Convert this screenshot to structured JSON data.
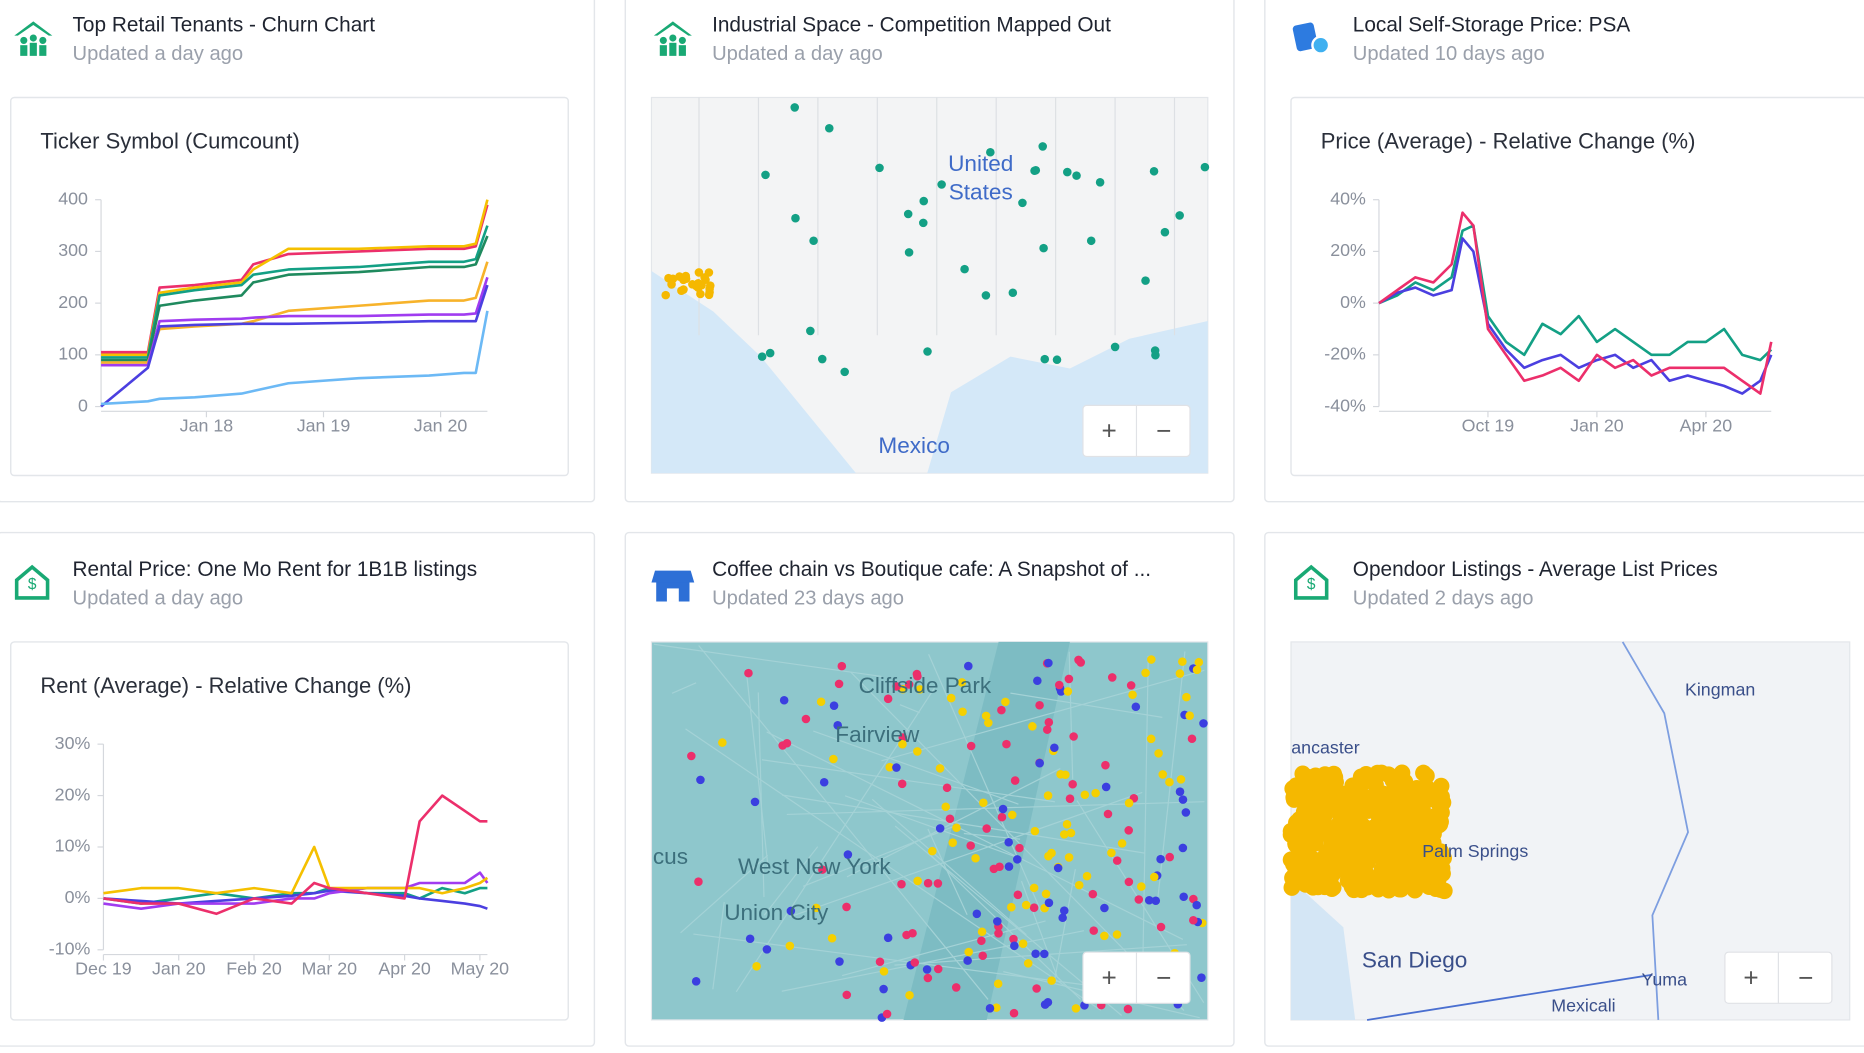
{
  "cards": [
    {
      "title": "Top Retail Tenants - Churn Chart",
      "updated": "Updated a day ago",
      "chart_data": {
        "type": "line",
        "title": "Ticker Symbol (Cumcount)",
        "x": [
          2017.1,
          2017.5,
          2017.6,
          2017.9,
          2018.3,
          2018.4,
          2018.7,
          2019.3,
          2019.9,
          2020.2,
          2020.3,
          2020.4
        ],
        "xlim": [
          2017.1,
          2020.4
        ],
        "xticks": [
          {
            "value": 2018,
            "label": "Jan 18"
          },
          {
            "value": 2019,
            "label": "Jan 19"
          },
          {
            "value": 2020,
            "label": "Jan 20"
          }
        ],
        "ylim": [
          0,
          400
        ],
        "yticks": [
          0,
          100,
          200,
          300,
          400
        ],
        "series": [
          {
            "color": "#ec2f6b",
            "values": [
              105,
              105,
              230,
              235,
              245,
              275,
              295,
              300,
              305,
              305,
              310,
              390
            ]
          },
          {
            "color": "#f5c000",
            "values": [
              100,
              100,
              220,
              230,
              240,
              265,
              305,
              305,
              310,
              310,
              315,
              400
            ]
          },
          {
            "color": "#13a085",
            "values": [
              95,
              95,
              215,
              225,
              235,
              255,
              265,
              270,
              280,
              280,
              285,
              350
            ]
          },
          {
            "color": "#1f8a5e",
            "values": [
              90,
              90,
              195,
              205,
              215,
              240,
              255,
              260,
              270,
              270,
              275,
              330
            ]
          },
          {
            "color": "#f7b32b",
            "values": [
              85,
              85,
              150,
              155,
              160,
              165,
              185,
              195,
              205,
              205,
              210,
              280
            ]
          },
          {
            "color": "#a03cf0",
            "values": [
              80,
              80,
              165,
              168,
              170,
              172,
              175,
              175,
              178,
              178,
              180,
              250
            ]
          },
          {
            "color": "#4b3fe0",
            "values": [
              0,
              75,
              155,
              158,
              160,
              160,
              160,
              162,
              165,
              165,
              165,
              235
            ]
          },
          {
            "color": "#6cb9f5",
            "values": [
              5,
              10,
              15,
              18,
              25,
              30,
              45,
              55,
              60,
              65,
              65,
              185
            ]
          }
        ]
      }
    },
    {
      "title": "Industrial Space - Competition Mapped Out",
      "updated": "Updated a day ago",
      "map": {
        "labels": [
          "United",
          "States",
          "Mexico"
        ],
        "marker_colors": [
          "#13a085",
          "#f5b800"
        ],
        "zoom_in": "+",
        "zoom_out": "−"
      }
    },
    {
      "title": "Local Self-Storage Price: PSA",
      "updated": "Updated 10 days ago",
      "chart_data": {
        "type": "line",
        "title": "Price (Average) - Relative Change (%)",
        "x": [
          0,
          0.5,
          1,
          1.5,
          2,
          2.3,
          2.6,
          3,
          3.5,
          4,
          4.5,
          5,
          5.5,
          6,
          6.5,
          7,
          7.5,
          8,
          8.5,
          9,
          9.5,
          10,
          10.5,
          10.8
        ],
        "xlim": [
          0,
          10.8
        ],
        "xticks": [
          {
            "value": 3,
            "label": "Oct 19"
          },
          {
            "value": 6,
            "label": "Jan 20"
          },
          {
            "value": 9,
            "label": "Apr 20"
          }
        ],
        "ylim": [
          -40,
          40
        ],
        "yticks": [
          {
            "value": 40,
            "label": "40%"
          },
          {
            "value": 20,
            "label": "20%"
          },
          {
            "value": 0,
            "label": "0%"
          },
          {
            "value": -20,
            "label": "-20%"
          },
          {
            "value": -40,
            "label": "-40%"
          }
        ],
        "series": [
          {
            "color": "#13a085",
            "values": [
              0,
              3,
              8,
              5,
              10,
              28,
              30,
              -5,
              -15,
              -20,
              -8,
              -12,
              -5,
              -15,
              -10,
              -15,
              -20,
              -20,
              -15,
              -15,
              -10,
              -20,
              -22,
              -18
            ]
          },
          {
            "color": "#4b3fe0",
            "values": [
              0,
              4,
              6,
              3,
              5,
              25,
              20,
              -8,
              -18,
              -25,
              -22,
              -20,
              -25,
              -22,
              -20,
              -25,
              -22,
              -30,
              -28,
              -30,
              -32,
              -35,
              -30,
              -20
            ]
          },
          {
            "color": "#ec2f6b",
            "values": [
              0,
              5,
              10,
              8,
              15,
              35,
              30,
              -10,
              -20,
              -30,
              -28,
              -25,
              -30,
              -20,
              -25,
              -22,
              -28,
              -25,
              -25,
              -25,
              -25,
              -30,
              -35,
              -15
            ]
          }
        ]
      }
    },
    {
      "title": "Rental Price: One Mo Rent for 1B1B listings",
      "updated": "Updated a day ago",
      "chart_data": {
        "type": "line",
        "title": "Rent (Average) - Relative Change (%)",
        "x": [
          0,
          0.5,
          1,
          1.5,
          2,
          2.5,
          2.8,
          3,
          3.5,
          4,
          4.2,
          4.5,
          4.8,
          5,
          5.1
        ],
        "xlim": [
          0,
          5.1
        ],
        "xticks": [
          {
            "value": 0,
            "label": "Dec 19"
          },
          {
            "value": 1,
            "label": "Jan 20"
          },
          {
            "value": 2,
            "label": "Feb 20"
          },
          {
            "value": 3,
            "label": "Mar 20"
          },
          {
            "value": 4,
            "label": "Apr 20"
          },
          {
            "value": 5,
            "label": "May 20"
          }
        ],
        "ylim": [
          -10,
          30
        ],
        "yticks": [
          {
            "value": 30,
            "label": "30%"
          },
          {
            "value": 20,
            "label": "20%"
          },
          {
            "value": 10,
            "label": "10%"
          },
          {
            "value": 0,
            "label": "0%"
          },
          {
            "value": -10,
            "label": "-10%"
          }
        ],
        "series": [
          {
            "color": "#13a085",
            "values": [
              0,
              -1,
              0,
              1,
              0,
              1,
              1,
              2,
              1,
              1,
              0,
              2,
              1,
              2,
              2
            ]
          },
          {
            "color": "#4b3fe0",
            "values": [
              0,
              -0.5,
              -1,
              -0.5,
              0,
              0.5,
              1,
              1.5,
              1,
              0.5,
              0,
              -0.5,
              -1,
              -1.5,
              -2
            ]
          },
          {
            "color": "#a03cf0",
            "values": [
              -1,
              -2,
              -1,
              -1,
              -1,
              0,
              0,
              1,
              2,
              2,
              3,
              3,
              3,
              5,
              3
            ]
          },
          {
            "color": "#f5c000",
            "values": [
              1,
              2,
              2,
              1,
              2,
              1,
              10,
              2,
              2,
              2,
              2,
              1,
              2,
              3,
              4
            ]
          },
          {
            "color": "#ec2f6b",
            "values": [
              0,
              -1,
              -1,
              -3,
              0,
              -1,
              3,
              2,
              1,
              0,
              15,
              20,
              17,
              15,
              15
            ]
          }
        ]
      }
    },
    {
      "title": "Coffee chain vs Boutique cafe: A Snapshot of ...",
      "updated": "Updated 23 days ago",
      "map": {
        "labels": [
          "Cliffside Park",
          "Fairview",
          "West New York",
          "Union City",
          "cus"
        ],
        "marker_colors": [
          "#ec2f6b",
          "#f5d000",
          "#3b3fe0"
        ],
        "zoom_in": "+",
        "zoom_out": "−"
      }
    },
    {
      "title": "Opendoor Listings - Average List Prices",
      "updated": "Updated 2 days ago",
      "map": {
        "labels": [
          "Kingman",
          "ancaster",
          "Palm Springs",
          "San Diego",
          "Yuma",
          "Mexicali"
        ],
        "marker_colors": [
          "#f5b800"
        ],
        "zoom_in": "+",
        "zoom_out": "−"
      }
    }
  ]
}
